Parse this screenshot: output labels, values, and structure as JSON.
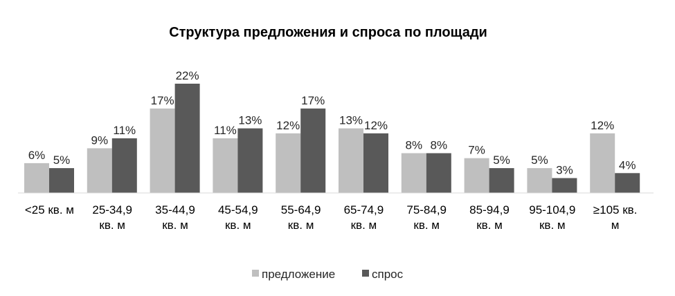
{
  "chart_data": {
    "type": "bar",
    "title": "Структура предложения и спроса по площади",
    "categories": [
      [
        "<25 кв. м"
      ],
      [
        "25-34,9",
        "кв. м"
      ],
      [
        "35-44,9",
        "кв. м"
      ],
      [
        "45-54,9",
        "кв. м"
      ],
      [
        "55-64,9",
        "кв. м"
      ],
      [
        "65-74,9",
        "кв. м"
      ],
      [
        "75-84,9",
        "кв. м"
      ],
      [
        "85-94,9",
        "кв. м"
      ],
      [
        "95-104,9",
        "кв. м"
      ],
      [
        "≥105 кв.",
        "м"
      ]
    ],
    "series": [
      {
        "name": "предложение",
        "color": "#bfbfbf",
        "values": [
          6,
          9,
          17,
          11,
          12,
          13,
          8,
          7,
          5,
          12
        ],
        "labels": [
          "6%",
          "9%",
          "17%",
          "11%",
          "12%",
          "13%",
          "8%",
          "7%",
          "5%",
          "12%"
        ]
      },
      {
        "name": "спрос",
        "color": "#595959",
        "values": [
          5,
          11,
          22,
          13,
          17,
          12,
          8,
          5,
          3,
          4
        ],
        "labels": [
          "5%",
          "11%",
          "22%",
          "13%",
          "17%",
          "12%",
          "8%",
          "5%",
          "3%",
          "4%"
        ]
      }
    ],
    "unit": "%",
    "ylim": [
      0,
      22
    ],
    "grid": false,
    "legend_position": "bottom"
  }
}
